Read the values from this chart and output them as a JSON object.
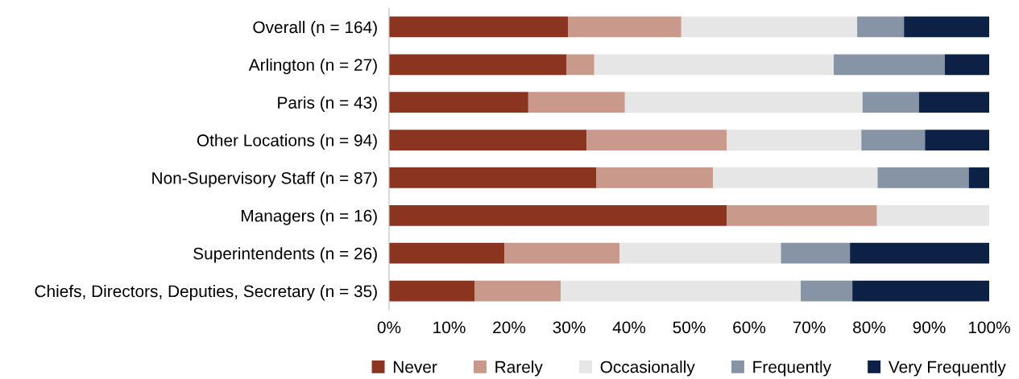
{
  "chart_data": {
    "type": "bar",
    "orientation": "horizontal",
    "stacked": true,
    "legend": "bottom",
    "grid": false,
    "categories": [
      "Overall (n = 164)",
      "Arlington (n = 27)",
      "Paris (n = 43)",
      "Other Locations (n = 94)",
      "Non-Supervisory Staff (n = 87)",
      "Managers (n = 16)",
      "Superintendents (n = 26)",
      "Chiefs, Directors, Deputies, Secretary (n = 35)"
    ],
    "series": [
      {
        "name": "Never",
        "color": "#8b3520",
        "values": [
          29.8,
          29.6,
          23.2,
          32.9,
          34.5,
          56.3,
          19.2,
          14.3
        ]
      },
      {
        "name": "Rarely",
        "color": "#c9998c",
        "values": [
          18.9,
          4.6,
          16.1,
          23.4,
          19.5,
          25.0,
          19.2,
          14.3
        ]
      },
      {
        "name": "Occasionally",
        "color": "#e6e6e6",
        "values": [
          29.3,
          39.9,
          39.6,
          22.4,
          27.4,
          18.7,
          26.9,
          40.0
        ]
      },
      {
        "name": "Frequently",
        "color": "#8794a6",
        "values": [
          7.8,
          18.5,
          9.4,
          10.6,
          15.2,
          0,
          11.5,
          8.6
        ]
      },
      {
        "name": "Very Frequently",
        "color": "#0d2147",
        "values": [
          14.2,
          7.4,
          11.7,
          10.7,
          3.4,
          0,
          23.2,
          22.8
        ]
      }
    ],
    "xlim": [
      0,
      100
    ],
    "xticks": [
      {
        "value": 0,
        "label": "0%"
      },
      {
        "value": 10,
        "label": "10%"
      },
      {
        "value": 20,
        "label": "20%"
      },
      {
        "value": 30,
        "label": "30%"
      },
      {
        "value": 40,
        "label": "40%"
      },
      {
        "value": 50,
        "label": "50%"
      },
      {
        "value": 60,
        "label": "60%"
      },
      {
        "value": 70,
        "label": "70%"
      },
      {
        "value": 80,
        "label": "80%"
      },
      {
        "value": 90,
        "label": "90%"
      },
      {
        "value": 100,
        "label": "100%"
      }
    ]
  }
}
